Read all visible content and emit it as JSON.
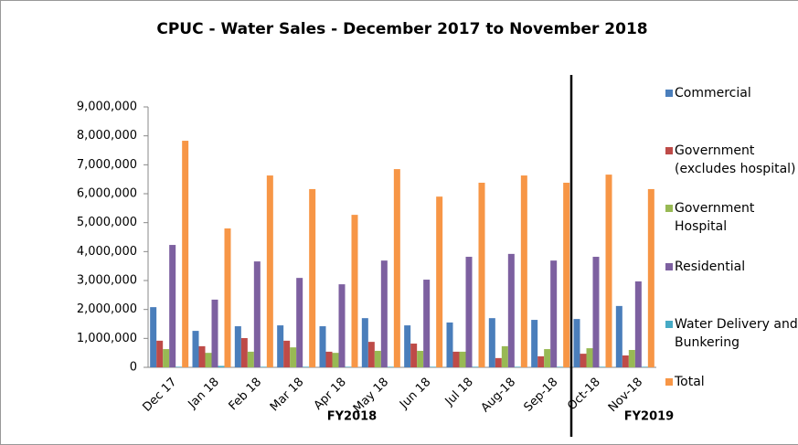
{
  "chart_data": {
    "type": "bar",
    "title": "CPUC - Water Sales - December 2017 to November 2018",
    "categories": [
      "Dec 17",
      "Jan 18",
      "Feb 18",
      "Mar 18",
      "Apr 18",
      "May 18",
      "Jun 18",
      "Jul 18",
      "Aug-18",
      "Sep-18",
      "Oct-18",
      "Nov-18"
    ],
    "series": [
      {
        "name": "Commercial",
        "color": "#4a7ebb",
        "values": [
          2080000,
          1260000,
          1420000,
          1450000,
          1420000,
          1700000,
          1450000,
          1550000,
          1700000,
          1640000,
          1670000,
          2120000
        ]
      },
      {
        "name": "Government (excludes hospital)",
        "color": "#be4b48",
        "values": [
          920000,
          730000,
          1010000,
          920000,
          540000,
          880000,
          820000,
          540000,
          320000,
          380000,
          470000,
          410000
        ]
      },
      {
        "name": "Government Hospital",
        "color": "#98b954",
        "values": [
          630000,
          500000,
          540000,
          690000,
          500000,
          570000,
          570000,
          540000,
          730000,
          630000,
          660000,
          600000
        ]
      },
      {
        "name": "Residential",
        "color": "#7d60a0",
        "values": [
          4230000,
          2340000,
          3660000,
          3090000,
          2870000,
          3690000,
          3030000,
          3820000,
          3920000,
          3690000,
          3820000,
          2970000
        ]
      },
      {
        "name": "Water Delivery and Bunkering",
        "color": "#46aac5",
        "values": [
          20000,
          50000,
          20000,
          20000,
          20000,
          20000,
          20000,
          20000,
          20000,
          20000,
          20000,
          20000
        ]
      },
      {
        "name": "Total",
        "color": "#f79646",
        "values": [
          7830000,
          4800000,
          6630000,
          6160000,
          5270000,
          6850000,
          5900000,
          6380000,
          6630000,
          6380000,
          6660000,
          6160000
        ]
      }
    ],
    "ylim": [
      0,
      9000000
    ],
    "yticks": [
      0,
      {
        "value": 1000000,
        "label": "1,000,000"
      },
      {
        "value": 2000000,
        "label": "2,000,000"
      },
      {
        "value": 3000000,
        "label": "3,000,000"
      },
      {
        "value": 4000000,
        "label": "4,000,000"
      },
      {
        "value": 5000000,
        "label": "5,000,000"
      },
      {
        "value": 6000000,
        "label": "6,000,000"
      },
      {
        "value": 7000000,
        "label": "7,000,000"
      },
      {
        "value": 8000000,
        "label": "8,000,000"
      },
      {
        "value": 9000000,
        "label": "9,000,000"
      }
    ],
    "annotations": [
      "FY2018",
      "FY2019"
    ]
  }
}
